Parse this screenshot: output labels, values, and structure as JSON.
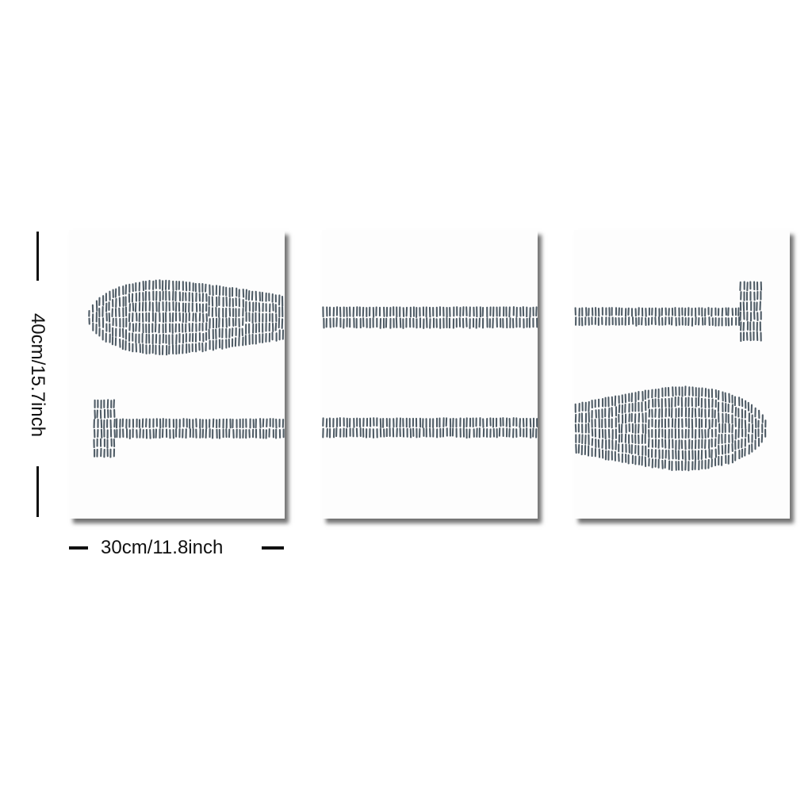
{
  "dimensions": {
    "height_label": "40cm/15.7inch",
    "width_label": "30cm/11.8inch"
  },
  "colors": {
    "stroke": "#4f5c66",
    "panel": "#fdfdfd",
    "annotation": "#111111"
  }
}
